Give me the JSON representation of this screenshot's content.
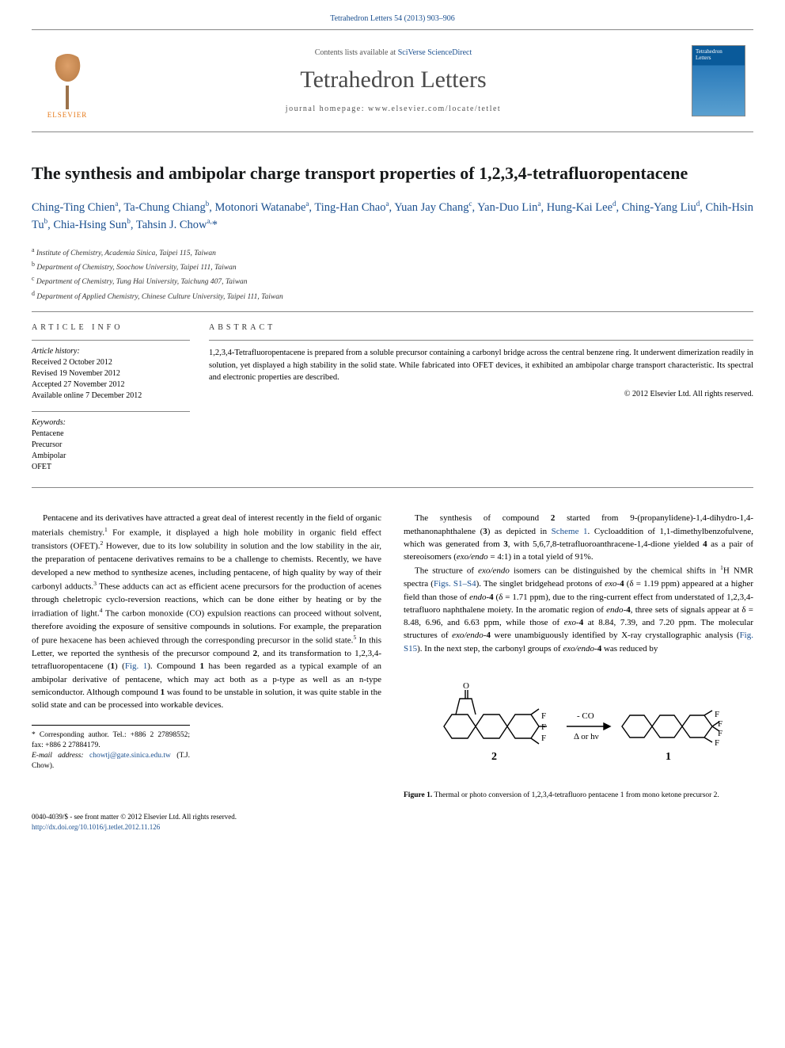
{
  "journal_ref": "Tetrahedron Letters 54 (2013) 903–906",
  "masthead": {
    "elsevier_label": "ELSEVIER",
    "contents_prefix": "Contents lists available at ",
    "contents_link": "SciVerse ScienceDirect",
    "journal_name": "Tetrahedron Letters",
    "homepage_prefix": "journal homepage: ",
    "homepage_url": "www.elsevier.com/locate/tetlet"
  },
  "title": "The synthesis and ambipolar charge transport properties of 1,2,3,4-tetrafluoropentacene",
  "authors_html": "Ching-Ting Chien<sup>a</sup>, Ta-Chung Chiang<sup>b</sup>, Motonori Watanabe<sup>a</sup>, Ting-Han Chao<sup>a</sup>, Yuan Jay Chang<sup>c</sup>, Yan-Duo Lin<sup>a</sup>, Hung-Kai Lee<sup>d</sup>, Ching-Yang Liu<sup>d</sup>, Chih-Hsin Tu<sup>b</sup>, Chia-Hsing Sun<sup>b</sup>, Tahsin J. Chow<sup>a,</sup><span class='corr'>*</span>",
  "affiliations": [
    {
      "sup": "a",
      "text": "Institute of Chemistry, Academia Sinica, Taipei 115, Taiwan"
    },
    {
      "sup": "b",
      "text": "Department of Chemistry, Soochow University, Taipei 111, Taiwan"
    },
    {
      "sup": "c",
      "text": "Department of Chemistry, Tung Hai University, Taichung 407, Taiwan"
    },
    {
      "sup": "d",
      "text": "Department of Applied Chemistry, Chinese Culture University, Taipei 111, Taiwan"
    }
  ],
  "info": {
    "heading": "ARTICLE INFO",
    "history_label": "Article history:",
    "history": [
      "Received 2 October 2012",
      "Revised 19 November 2012",
      "Accepted 27 November 2012",
      "Available online 7 December 2012"
    ],
    "keywords_label": "Keywords:",
    "keywords": [
      "Pentacene",
      "Precursor",
      "Ambipolar",
      "OFET"
    ]
  },
  "abstract": {
    "heading": "ABSTRACT",
    "text": "1,2,3,4-Tetrafluoropentacene is prepared from a soluble precursor containing a carbonyl bridge across the central benzene ring. It underwent dimerization readily in solution, yet displayed a high stability in the solid state. While fabricated into OFET devices, it exhibited an ambipolar charge transport characteristic. Its spectral and electronic properties are described.",
    "copyright": "© 2012 Elsevier Ltd. All rights reserved."
  },
  "body": {
    "col1_p1": "Pentacene and its derivatives have attracted a great deal of interest recently in the field of organic materials chemistry.<sup>1</sup> For example, it displayed a high hole mobility in organic field effect transistors (OFET).<sup>2</sup> However, due to its low solubility in solution and the low stability in the air, the preparation of pentacene derivatives remains to be a challenge to chemists. Recently, we have developed a new method to synthesize acenes, including pentacene, of high quality by way of their carbonyl adducts.<sup>3</sup> These adducts can act as efficient acene precursors for the production of acenes through cheletropic cyclo-reversion reactions, which can be done either by heating or by the irradiation of light.<sup>4</sup> The carbon monoxide (CO) expulsion reactions can proceed without solvent, therefore avoiding the exposure of sensitive compounds in solutions. For example, the preparation of pure hexacene has been achieved through the corresponding precursor in the solid state.<sup>5</sup> In this Letter, we reported the synthesis of the precursor compound <b>2</b>, and its transformation to 1,2,3,4-tetrafluoropentacene (<b>1</b>) (<span class='ref-link'>Fig. 1</span>). Compound <b>1</b> has been regarded as a typical example of an ambipolar derivative of pentacene, which may act both as a p-type as well as an n-type semiconductor. Although compound <b>1</b> was found to be unstable in solution, it was quite stable in the solid state and can be processed into workable devices.",
    "col2_p1": "The synthesis of compound <b>2</b> started from 9-(propanylidene)-1,4-dihydro-1,4-methanonaphthalene (<b>3</b>) as depicted in <span class='ref-link'>Scheme 1</span>. Cycloaddition of 1,1-dimethylbenzofulvene, which was generated from <b>3</b>, with 5,6,7,8-tetrafluoroanthracene-1,4-dione yielded <b>4</b> as a pair of stereoisomers (<i>exo/endo</i> = 4:1) in a total yield of 91%.",
    "col2_p2": "The structure of <i>exo/endo</i> isomers can be distinguished by the chemical shifts in <sup>1</sup>H NMR spectra (<span class='ref-link'>Figs. S1–S4</span>). The singlet bridgehead protons of <i>exo</i>-<b>4</b> (δ = 1.19 ppm) appeared at a higher field than those of <i>endo</i>-<b>4</b> (δ = 1.71 ppm), due to the ring-current effect from understated of 1,2,3,4-tetrafluoro naphthalene moiety. In the aromatic region of <i>endo</i>-<b>4</b>, three sets of signals appear at δ = 8.48, 6.96, and 6.63 ppm, while those of <i>exo</i>-<b>4</b> at 8.84, 7.39, and 7.20 ppm. The molecular structures of <i>exo/endo</i>-<b>4</b> were unambiguously identified by X-ray crystallographic analysis (<span class='ref-link'>Fig. S15</span>). In the next step, the carbonyl groups of <i>exo/endo</i>-<b>4</b> was reduced by"
  },
  "figure1": {
    "arrow_top": "- CO",
    "arrow_bottom": "Δ or hν",
    "left_label": "2",
    "right_label": "1",
    "caption_bold": "Figure 1.",
    "caption_text": " Thermal or photo conversion of 1,2,3,4-tetrafluoro pentacene 1 from mono ketone precursor 2.",
    "colors": {
      "stroke": "#000000",
      "fill": "#ffffff",
      "text": "#000000"
    }
  },
  "footnote": {
    "corr_label": "* Corresponding author. Tel.: +886 2 27898552; fax: +886 2 27884179.",
    "email_label": "E-mail address:",
    "email": "chowtj@gate.sinica.edu.tw",
    "email_suffix": "(T.J. Chow)."
  },
  "bottom": {
    "issn": "0040-4039/$ - see front matter © 2012 Elsevier Ltd. All rights reserved.",
    "doi": "http://dx.doi.org/10.1016/j.tetlet.2012.11.126"
  }
}
